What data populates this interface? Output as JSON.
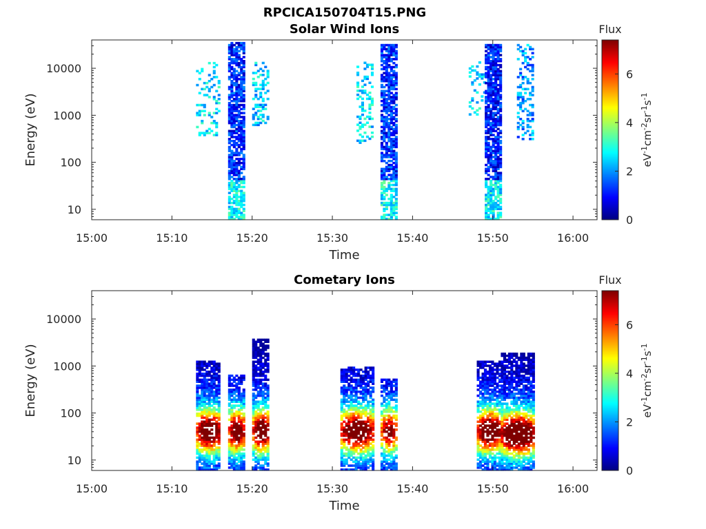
{
  "figure_title": "RPCICA150704T15.PNG",
  "colormap": [
    "#00007f",
    "#0000ff",
    "#007fff",
    "#00ffff",
    "#7fff7f",
    "#ffff00",
    "#ff7f00",
    "#ff0000",
    "#7f0000"
  ],
  "chart_data": [
    {
      "type": "heatmap",
      "title": "Solar Wind Ions",
      "xlabel": "Time",
      "ylabel": "Energy (eV)",
      "y_scale": "log",
      "xlim": [
        "15:00",
        "16:03"
      ],
      "ylim": [
        6,
        40000
      ],
      "x_ticks": [
        "15:00",
        "15:10",
        "15:20",
        "15:30",
        "15:40",
        "15:50",
        "16:00"
      ],
      "y_ticks": [
        "10",
        "100",
        "1000",
        "10000"
      ],
      "grid": false,
      "colorbar": {
        "label": "Flux",
        "unit": "eV-1cm-2sr-1s-1",
        "range": [
          0,
          7.4
        ],
        "ticks": [
          "0",
          "2",
          "4",
          "6"
        ]
      },
      "bursts": [
        {
          "time_range": [
            "15:13",
            "15:16"
          ],
          "energy_range": [
            300,
            13000
          ],
          "typical_flux": 2.6,
          "density": 0.25
        },
        {
          "time_range": [
            "15:17",
            "15:19"
          ],
          "energy_range": [
            6,
            35000
          ],
          "typical_flux": 1.2,
          "density": 0.75
        },
        {
          "time_range": [
            "15:20",
            "15:22"
          ],
          "energy_range": [
            600,
            13000
          ],
          "typical_flux": 2.4,
          "density": 0.35
        },
        {
          "time_range": [
            "15:33",
            "15:35"
          ],
          "energy_range": [
            250,
            13000
          ],
          "typical_flux": 2.6,
          "density": 0.3
        },
        {
          "time_range": [
            "15:36",
            "15:38"
          ],
          "energy_range": [
            6,
            30000
          ],
          "typical_flux": 1.2,
          "density": 0.75
        },
        {
          "time_range": [
            "15:47",
            "15:49"
          ],
          "energy_range": [
            1000,
            13000
          ],
          "typical_flux": 2.5,
          "density": 0.2
        },
        {
          "time_range": [
            "15:49",
            "15:51"
          ],
          "energy_range": [
            6,
            30000
          ],
          "typical_flux": 1.1,
          "density": 0.8
        },
        {
          "time_range": [
            "15:53",
            "15:55"
          ],
          "energy_range": [
            300,
            30000
          ],
          "typical_flux": 2.0,
          "density": 0.35
        }
      ]
    },
    {
      "type": "heatmap",
      "title": "Cometary Ions",
      "xlabel": "Time",
      "ylabel": "Energy (eV)",
      "y_scale": "log",
      "xlim": [
        "15:00",
        "16:03"
      ],
      "ylim": [
        6,
        40000
      ],
      "x_ticks": [
        "15:00",
        "15:10",
        "15:20",
        "15:30",
        "15:40",
        "15:50",
        "16:00"
      ],
      "y_ticks": [
        "10",
        "100",
        "1000",
        "10000"
      ],
      "grid": false,
      "colorbar": {
        "label": "Flux",
        "unit": "eV-1cm-2sr-1s-1",
        "range": [
          0,
          7.4
        ],
        "ticks": [
          "0",
          "2",
          "4",
          "6"
        ]
      },
      "bursts": [
        {
          "time_range": [
            "15:13",
            "15:16"
          ],
          "energy_range": [
            6,
            1300
          ],
          "peak_energy": 40,
          "peak_flux": 6.5,
          "density": 0.8
        },
        {
          "time_range": [
            "15:17",
            "15:19"
          ],
          "energy_range": [
            6,
            600
          ],
          "peak_energy": 40,
          "peak_flux": 6.2,
          "density": 0.75
        },
        {
          "time_range": [
            "15:20",
            "15:22"
          ],
          "energy_range": [
            6,
            3500
          ],
          "peak_energy": 40,
          "peak_flux": 6.6,
          "density": 0.75
        },
        {
          "time_range": [
            "15:31",
            "15:35"
          ],
          "energy_range": [
            6,
            900
          ],
          "peak_energy": 40,
          "peak_flux": 6.4,
          "density": 0.75
        },
        {
          "time_range": [
            "15:36",
            "15:38"
          ],
          "energy_range": [
            6,
            500
          ],
          "peak_energy": 40,
          "peak_flux": 5.5,
          "density": 0.7
        },
        {
          "time_range": [
            "15:48",
            "15:51"
          ],
          "energy_range": [
            6,
            1300
          ],
          "peak_energy": 40,
          "peak_flux": 6.6,
          "density": 0.75
        },
        {
          "time_range": [
            "15:51",
            "15:55"
          ],
          "energy_range": [
            6,
            1800
          ],
          "peak_energy": 35,
          "peak_flux": 7.2,
          "density": 0.8
        }
      ]
    }
  ]
}
